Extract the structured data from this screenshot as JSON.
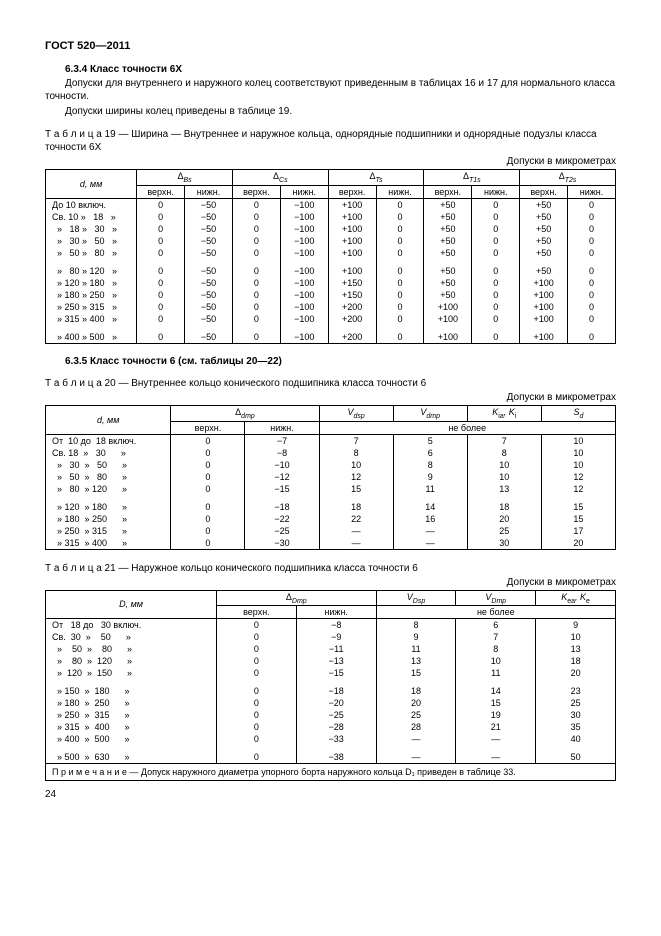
{
  "header": "ГОСТ 520—2011",
  "s634_title": "6.3.4  Класс точности 6X",
  "s634_p1": "Допуски для внутреннего и наружного колец соответствуют приведенным в таблицах 16 и 17 для нормального класса точности.",
  "s634_p2": "Допуски ширины колец приведены в таблице 19.",
  "t19_caption": "Т а б л и ц а   19 — Ширина — Внутреннее и наружное кольца, однорядные подшипники и однорядные подузлы класса точности 6X",
  "units": "Допуски в микрометрах",
  "t19": {
    "col_d": "d, мм",
    "h1": "Δ",
    "h1s": "Bs",
    "h2": "Δ",
    "h2s": "Cs",
    "h3": "Δ",
    "h3s": "Ts",
    "h4": "Δ",
    "h4s": "T1s",
    "h5": "Δ",
    "h5s": "T2s",
    "vn": "верхн.",
    "nn": "нижн.",
    "rows": [
      {
        "d": "До 10 включ.",
        "v": [
          "0",
          "−50",
          "0",
          "−100",
          "+100",
          "0",
          "+50",
          "0",
          "+50",
          "0"
        ]
      },
      {
        "d": "Св. 10 »   18   »",
        "v": [
          "0",
          "−50",
          "0",
          "−100",
          "+100",
          "0",
          "+50",
          "0",
          "+50",
          "0"
        ]
      },
      {
        "d": "  »   18 »   30   »",
        "v": [
          "0",
          "−50",
          "0",
          "−100",
          "+100",
          "0",
          "+50",
          "0",
          "+50",
          "0"
        ]
      },
      {
        "d": "  »   30 »   50   »",
        "v": [
          "0",
          "−50",
          "0",
          "−100",
          "+100",
          "0",
          "+50",
          "0",
          "+50",
          "0"
        ]
      },
      {
        "d": "  »   50 »   80   »",
        "v": [
          "0",
          "−50",
          "0",
          "−100",
          "+100",
          "0",
          "+50",
          "0",
          "+50",
          "0"
        ]
      }
    ],
    "rows2": [
      {
        "d": "  »   80 » 120   »",
        "v": [
          "0",
          "−50",
          "0",
          "−100",
          "+100",
          "0",
          "+50",
          "0",
          "+50",
          "0"
        ]
      },
      {
        "d": "  » 120 » 180   »",
        "v": [
          "0",
          "−50",
          "0",
          "−100",
          "+150",
          "0",
          "+50",
          "0",
          "+100",
          "0"
        ]
      },
      {
        "d": "  » 180 » 250   »",
        "v": [
          "0",
          "−50",
          "0",
          "−100",
          "+150",
          "0",
          "+50",
          "0",
          "+100",
          "0"
        ]
      },
      {
        "d": "  » 250 » 315   »",
        "v": [
          "0",
          "−50",
          "0",
          "−100",
          "+200",
          "0",
          "+100",
          "0",
          "+100",
          "0"
        ]
      },
      {
        "d": "  » 315 » 400   »",
        "v": [
          "0",
          "−50",
          "0",
          "−100",
          "+200",
          "0",
          "+100",
          "0",
          "+100",
          "0"
        ]
      }
    ],
    "rows3": [
      {
        "d": "  » 400 » 500   »",
        "v": [
          "0",
          "−50",
          "0",
          "−100",
          "+200",
          "0",
          "+100",
          "0",
          "+100",
          "0"
        ]
      }
    ]
  },
  "s635_title": "6.3.5  Класс точности 6 (см. таблицы 20—22)",
  "t20_caption": "Т а б л и ц а   20 — Внутреннее кольцо конического подшипника класса точности 6",
  "t20": {
    "col_d": "d, мм",
    "h1": "Δ",
    "h1s": "dmp",
    "h2": "V",
    "h2s": "dsp",
    "h3": "V",
    "h3s": "dmp",
    "h4": "K",
    "h4s": "ia",
    "h4b": ", K",
    "h4bs": "i",
    "h5": "S",
    "h5s": "d",
    "vn": "верхн.",
    "nn": "нижн.",
    "nb": "не более",
    "rows": [
      {
        "d": "От  10 до  18 включ.",
        "v": [
          "0",
          "−7",
          "7",
          "5",
          "7",
          "10"
        ]
      },
      {
        "d": "Св. 18  »   30      »",
        "v": [
          "0",
          "−8",
          "8",
          "6",
          "8",
          "10"
        ]
      },
      {
        "d": "  »   30  »   50      »",
        "v": [
          "0",
          "−10",
          "10",
          "8",
          "10",
          "10"
        ]
      },
      {
        "d": "  »   50  »   80      »",
        "v": [
          "0",
          "−12",
          "12",
          "9",
          "10",
          "12"
        ]
      },
      {
        "d": "  »   80  » 120      »",
        "v": [
          "0",
          "−15",
          "15",
          "11",
          "13",
          "12"
        ]
      }
    ],
    "rows2": [
      {
        "d": "  » 120  » 180      »",
        "v": [
          "0",
          "−18",
          "18",
          "14",
          "18",
          "15"
        ]
      },
      {
        "d": "  » 180  » 250      »",
        "v": [
          "0",
          "−22",
          "22",
          "16",
          "20",
          "15"
        ]
      },
      {
        "d": "  » 250  » 315      »",
        "v": [
          "0",
          "−25",
          "—",
          "—",
          "25",
          "17"
        ]
      },
      {
        "d": "  » 315  » 400      »",
        "v": [
          "0",
          "−30",
          "—",
          "—",
          "30",
          "20"
        ]
      }
    ]
  },
  "t21_caption": "Т а б л и ц а   21 — Наружное кольцо конического подшипника класса точности 6",
  "t21": {
    "col_d": "D, мм",
    "h1": "Δ",
    "h1s": "Dmp",
    "h2": "V",
    "h2s": "Dsp",
    "h3": "V",
    "h3s": "Dmp",
    "h4": "K",
    "h4s": "ea",
    "h4b": ", K",
    "h4bs": "e",
    "vn": "верхн.",
    "nn": "нижн.",
    "nb": "не более",
    "rows": [
      {
        "d": "От   18 до   30 включ.",
        "v": [
          "0",
          "−8",
          "8",
          "6",
          "9"
        ]
      },
      {
        "d": "Св.  30  »    50      »",
        "v": [
          "0",
          "−9",
          "9",
          "7",
          "10"
        ]
      },
      {
        "d": "  »    50  »    80      »",
        "v": [
          "0",
          "−11",
          "11",
          "8",
          "13"
        ]
      },
      {
        "d": "  »    80  »  120      »",
        "v": [
          "0",
          "−13",
          "13",
          "10",
          "18"
        ]
      },
      {
        "d": "  »  120  »  150      »",
        "v": [
          "0",
          "−15",
          "15",
          "11",
          "20"
        ]
      }
    ],
    "rows2": [
      {
        "d": "  » 150  »  180      »",
        "v": [
          "0",
          "−18",
          "18",
          "14",
          "23"
        ]
      },
      {
        "d": "  » 180  »  250      »",
        "v": [
          "0",
          "−20",
          "20",
          "15",
          "25"
        ]
      },
      {
        "d": "  » 250  »  315      »",
        "v": [
          "0",
          "−25",
          "25",
          "19",
          "30"
        ]
      },
      {
        "d": "  » 315  »  400      »",
        "v": [
          "0",
          "−28",
          "28",
          "21",
          "35"
        ]
      },
      {
        "d": "  » 400  »  500      »",
        "v": [
          "0",
          "−33",
          "—",
          "—",
          "40"
        ]
      }
    ],
    "rows3": [
      {
        "d": "  » 500  »  630      »",
        "v": [
          "0",
          "−38",
          "—",
          "—",
          "50"
        ]
      }
    ],
    "note": "П р и м е ч а н и е — Допуск наружного диаметра упорного борта наружного кольца D₁ приведен в таблице 33."
  },
  "pagenum": "24"
}
